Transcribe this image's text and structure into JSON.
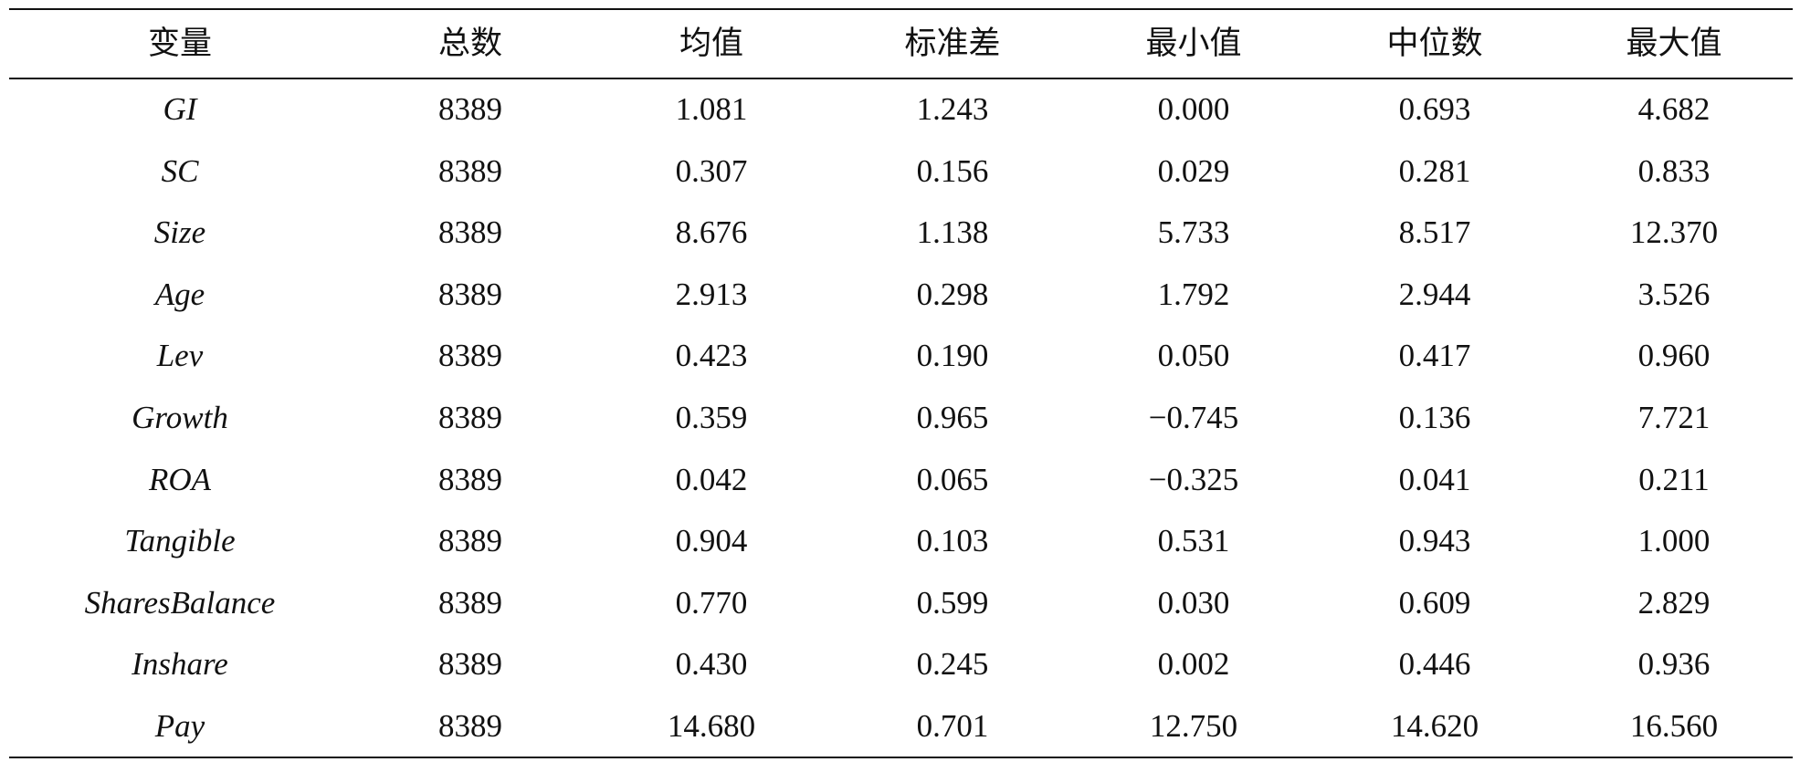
{
  "table": {
    "header": [
      "变量",
      "总数",
      "均值",
      "标准差",
      "最小值",
      "中位数",
      "最大值"
    ],
    "rows": [
      [
        "GI",
        "8389",
        "1.081",
        "1.243",
        "0.000",
        "0.693",
        "4.682"
      ],
      [
        "SC",
        "8389",
        "0.307",
        "0.156",
        "0.029",
        "0.281",
        "0.833"
      ],
      [
        "Size",
        "8389",
        "8.676",
        "1.138",
        "5.733",
        "8.517",
        "12.370"
      ],
      [
        "Age",
        "8389",
        "2.913",
        "0.298",
        "1.792",
        "2.944",
        "3.526"
      ],
      [
        "Lev",
        "8389",
        "0.423",
        "0.190",
        "0.050",
        "0.417",
        "0.960"
      ],
      [
        "Growth",
        "8389",
        "0.359",
        "0.965",
        "−0.745",
        "0.136",
        "7.721"
      ],
      [
        "ROA",
        "8389",
        "0.042",
        "0.065",
        "−0.325",
        "0.041",
        "0.211"
      ],
      [
        "Tangible",
        "8389",
        "0.904",
        "0.103",
        "0.531",
        "0.943",
        "1.000"
      ],
      [
        "SharesBalance",
        "8389",
        "0.770",
        "0.599",
        "0.030",
        "0.609",
        "2.829"
      ],
      [
        "Inshare",
        "8389",
        "0.430",
        "0.245",
        "0.002",
        "0.446",
        "0.936"
      ],
      [
        "Pay",
        "8389",
        "14.680",
        "0.701",
        "12.750",
        "14.620",
        "16.560"
      ]
    ]
  }
}
